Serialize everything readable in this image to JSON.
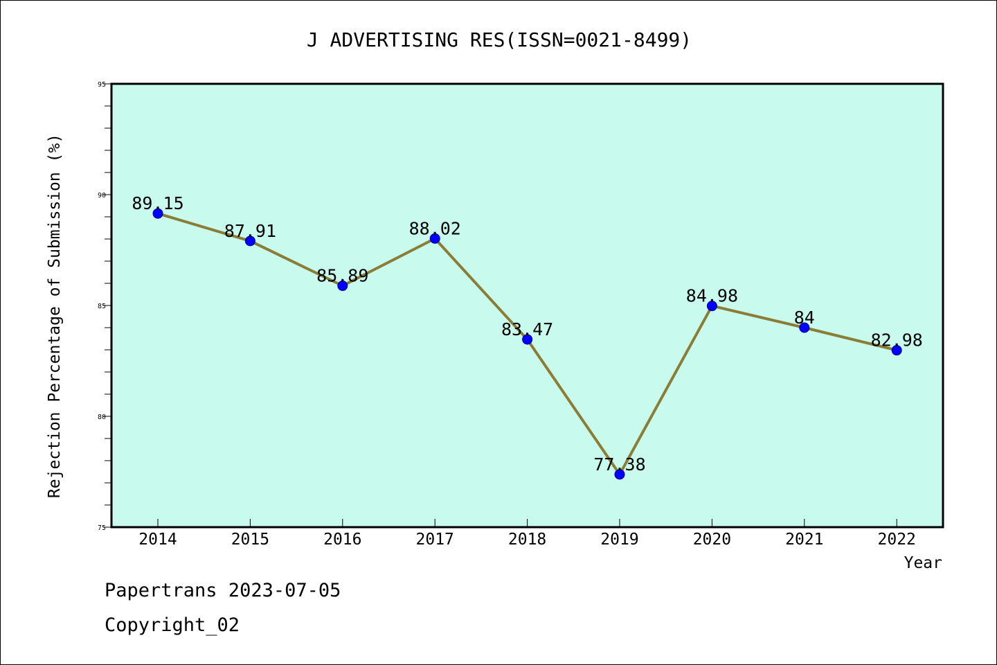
{
  "chart_data": {
    "type": "line",
    "title": "J ADVERTISING RES(ISSN=0021-8499)",
    "xlabel": "Year",
    "ylabel": "Rejection Percentage of Submission (%)",
    "ylim": [
      75,
      95
    ],
    "yticks": [
      75,
      80,
      85,
      90,
      95
    ],
    "categories": [
      "2014",
      "2015",
      "2016",
      "2017",
      "2018",
      "2019",
      "2020",
      "2021",
      "2022"
    ],
    "values": [
      89.15,
      87.91,
      85.89,
      88.02,
      83.47,
      77.38,
      84.98,
      84,
      82.98
    ],
    "data_labels": [
      "89.15",
      "87.91",
      "85.89",
      "88.02",
      "83.47",
      "77.38",
      "84.98",
      "84",
      "82.98"
    ],
    "grid": false,
    "colors": {
      "plot_background": "#c8fbee",
      "line": "#8b7d35",
      "marker": "#0000ff"
    }
  },
  "footer": {
    "line1": "Papertrans 2023-07-05",
    "line2": "Copyright_02"
  }
}
